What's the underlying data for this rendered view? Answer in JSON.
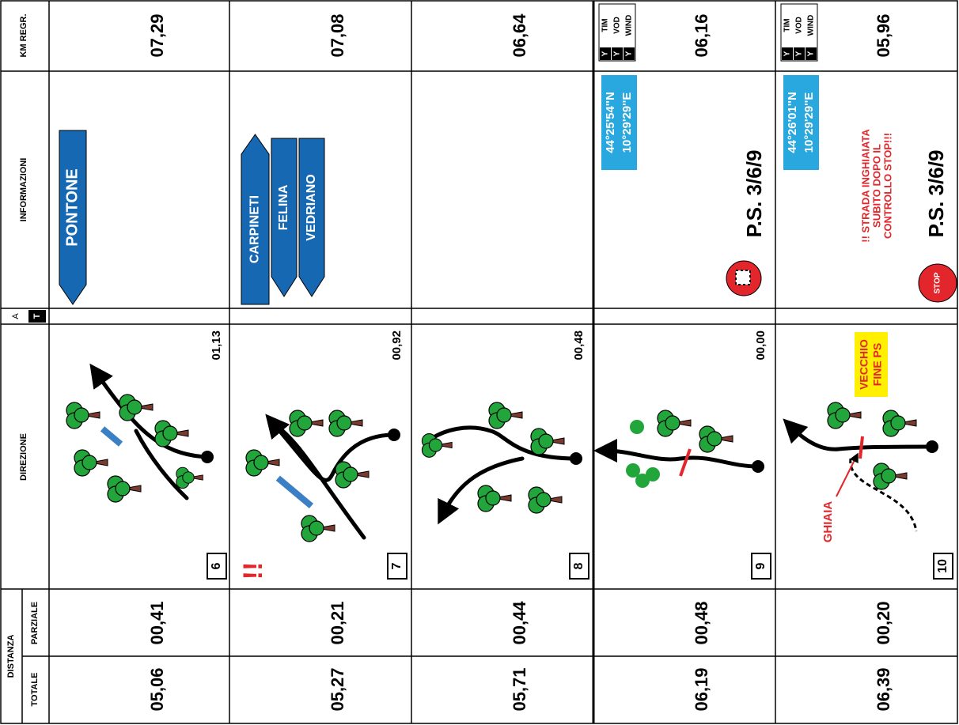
{
  "headers": {
    "km_regr": "KM REGR.",
    "informazioni": "INFORMAZIONI",
    "a": "A",
    "t": "T",
    "direzione": "DIREZIONE",
    "distanza": "DISTANZA",
    "parziale": "PARZIALE",
    "totale": "TOTALE"
  },
  "rows": [
    {
      "number": "6",
      "km_regr": "07,29",
      "direction_distance": "01,13",
      "parziale": "00,41",
      "totale": "05,06",
      "signs": [
        "PONTONE"
      ]
    },
    {
      "number": "7",
      "km_regr": "07,08",
      "direction_distance": "00,92",
      "parziale": "00,21",
      "totale": "05,27",
      "signs": [
        "CARPINETI",
        "FELINA",
        "VEDRIANO"
      ],
      "warning": "!!"
    },
    {
      "number": "8",
      "km_regr": "06,64",
      "direction_distance": "00,48",
      "parziale": "00,44",
      "totale": "05,71"
    },
    {
      "number": "9",
      "km_regr": "06,16",
      "direction_distance": "00,00",
      "parziale": "00,48",
      "totale": "06,19",
      "phones": [
        {
          "name": "TIM",
          "mark": "Y"
        },
        {
          "name": "VOD",
          "mark": "Y"
        },
        {
          "name": "WIND",
          "mark": "Y"
        }
      ],
      "coordinates": [
        "44°25'54''N",
        "10°29'29''E"
      ],
      "ps": "P.S. 3/6/9"
    },
    {
      "number": "10",
      "km_regr": "05,96",
      "parziale": "00,20",
      "totale": "06,39",
      "phones": [
        {
          "name": "TIM",
          "mark": "Y"
        },
        {
          "name": "VOD",
          "mark": "Y"
        },
        {
          "name": "WIND",
          "mark": "Y"
        }
      ],
      "coordinates": [
        "44°26'01''N",
        "10°29'29''E"
      ],
      "ps": "P.S. 3/6/9",
      "note": [
        "!! STRADA INGHIAIATA",
        "SUBITO DOPO IL",
        "CONTROLLO STOP!!!"
      ],
      "stop": "STOP",
      "label": [
        "VECCHIO",
        "FINE PS"
      ],
      "ghiaia": "GHIAIA"
    }
  ]
}
